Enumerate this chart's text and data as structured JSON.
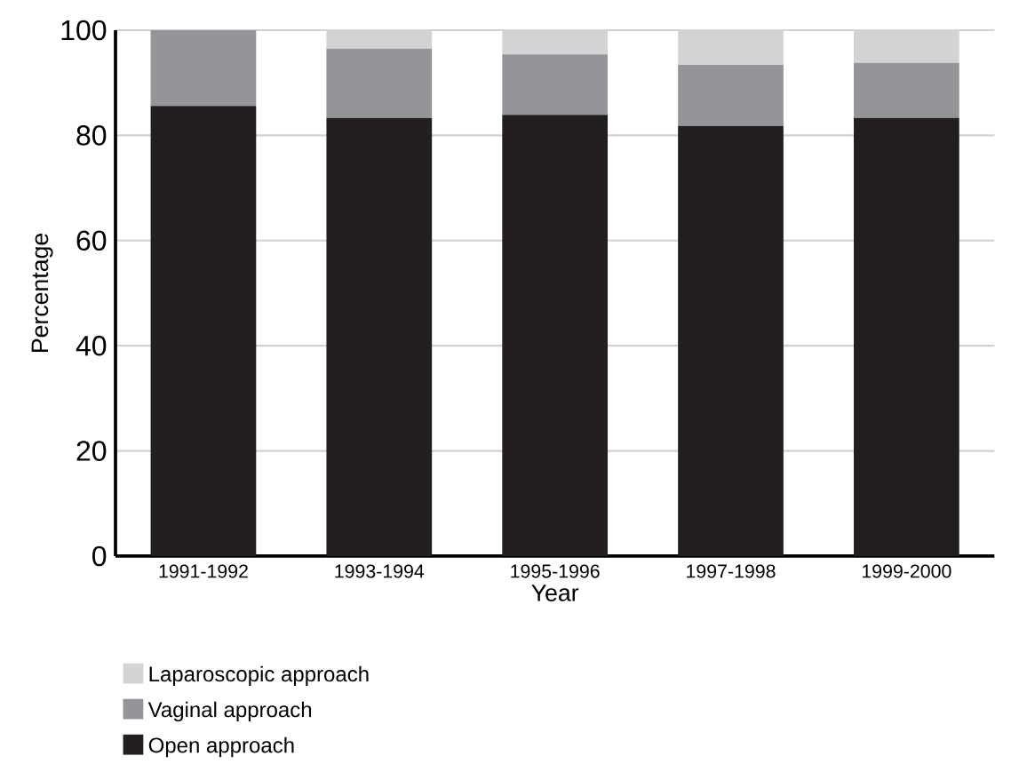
{
  "chart_data": {
    "type": "bar",
    "stacked": true,
    "xlabel": "Year",
    "ylabel": "Percentage",
    "categories": [
      "1991-1992",
      "1993-1994",
      "1995-1996",
      "1997-1998",
      "1999-2000"
    ],
    "series": [
      {
        "name": "Open approach",
        "color": "#231f20",
        "values": [
          85.6,
          83.3,
          83.9,
          81.8,
          83.3
        ]
      },
      {
        "name": "Vaginal approach",
        "color": "#939598",
        "values": [
          14.4,
          13.2,
          11.5,
          11.6,
          10.5
        ]
      },
      {
        "name": "Laparoscopic approach",
        "color": "#d1d3d4",
        "values": [
          0,
          3.5,
          4.6,
          6.6,
          6.2
        ]
      }
    ],
    "ylim": [
      0,
      100
    ],
    "yticks": [
      0,
      20,
      40,
      60,
      80,
      100
    ],
    "grid": "y",
    "legend": "bottom"
  }
}
